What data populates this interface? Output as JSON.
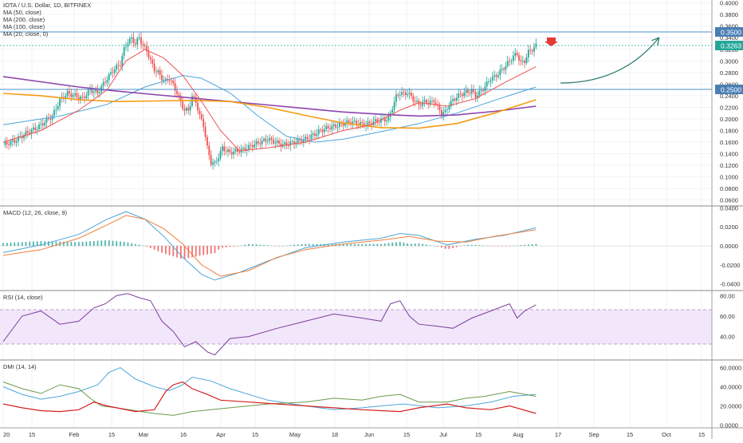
{
  "header": {
    "symbol_line": "IOTA / U.S. Dollar, 1D, BITFINEX",
    "ma_lines": [
      "MA (50, close)",
      "MA (200, close)",
      "MA (100, close)",
      "MA (20, close, 0)"
    ]
  },
  "panes": {
    "macd_label": "MACD (12, 26, close, 9)",
    "rsi_label": "RSI (14, close)",
    "dmi_label": "DMI (14, 14)"
  },
  "price_axis": {
    "ticks": [
      "0.4000",
      "0.3800",
      "0.3600",
      "0.3400",
      "0.3200",
      "0.3000",
      "0.2800",
      "0.2600",
      "0.2400",
      "0.2200",
      "0.2000",
      "0.1800",
      "0.1600",
      "0.1400",
      "0.1200",
      "0.1000",
      "0.0800",
      "0.0600"
    ],
    "tick_values": [
      0.4,
      0.38,
      0.36,
      0.34,
      0.32,
      0.3,
      0.28,
      0.26,
      0.24,
      0.22,
      0.2,
      0.18,
      0.16,
      0.14,
      0.12,
      0.1,
      0.08,
      0.06
    ],
    "resistance_label": "0.3500",
    "support_label": "0.2500",
    "last_price_label": "0.3263"
  },
  "macd_axis": {
    "ticks": [
      "0.0400",
      "0.0200",
      "0.0000",
      "-0.0200",
      "-0.0400"
    ],
    "values": [
      0.04,
      0.02,
      0,
      -0.02,
      -0.04
    ]
  },
  "rsi_axis": {
    "ticks": [
      "80.00",
      "60.00",
      "40.00"
    ],
    "values": [
      80,
      60,
      40
    ],
    "band": [
      30,
      70
    ]
  },
  "dmi_axis": {
    "ticks": [
      "60.0000",
      "40.0000",
      "20.0000",
      "0.0000"
    ],
    "values": [
      60,
      40,
      20,
      0
    ]
  },
  "time_axis": {
    "labels": [
      "20",
      "15",
      "Feb",
      "15",
      "Mar",
      "16",
      "Apr",
      "15",
      "May",
      "18",
      "Jun",
      "15",
      "Jul",
      "15",
      "Aug",
      "17",
      "Sep",
      "15",
      "Oct",
      "15"
    ]
  },
  "colors": {
    "up": "#26a69a",
    "down": "#ef5350",
    "ma50": "#4da6d9",
    "ma200": "#8e44ad",
    "ma100": "#f39c12",
    "ma20": "#ef5350",
    "macd": "#4da6d9",
    "signal": "#f0803c",
    "rsi": "#7b3f9a",
    "rsi_band": "#f2e6fb",
    "hline": "#4a90c8",
    "arrow": "#2e7d6e",
    "dmi_plus": "#6a9a4a",
    "dmi_minus": "#d62020",
    "adx": "#4da6d9"
  },
  "chart_data": {
    "type": "candlestick",
    "symbol": "IOTA / U.S. Dollar",
    "interval": "1D",
    "exchange": "BITFINEX",
    "ylim": [
      0.05,
      0.405
    ],
    "horizontal_levels": [
      0.35,
      0.25
    ],
    "last_price": 0.3263,
    "price_path": [
      [
        0,
        0.155
      ],
      [
        6,
        0.162
      ],
      [
        12,
        0.175
      ],
      [
        18,
        0.185
      ],
      [
        22,
        0.195
      ],
      [
        26,
        0.205
      ],
      [
        30,
        0.232
      ],
      [
        34,
        0.244
      ],
      [
        38,
        0.24
      ],
      [
        42,
        0.235
      ],
      [
        46,
        0.25
      ],
      [
        50,
        0.245
      ],
      [
        54,
        0.265
      ],
      [
        58,
        0.283
      ],
      [
        62,
        0.295
      ],
      [
        64,
        0.32
      ],
      [
        66,
        0.333
      ],
      [
        68,
        0.338
      ],
      [
        70,
        0.33
      ],
      [
        72,
        0.34
      ],
      [
        74,
        0.326
      ],
      [
        76,
        0.318
      ],
      [
        78,
        0.3
      ],
      [
        80,
        0.285
      ],
      [
        82,
        0.28
      ],
      [
        84,
        0.27
      ],
      [
        86,
        0.265
      ],
      [
        88,
        0.27
      ],
      [
        90,
        0.258
      ],
      [
        92,
        0.245
      ],
      [
        94,
        0.228
      ],
      [
        96,
        0.215
      ],
      [
        98,
        0.215
      ],
      [
        100,
        0.238
      ],
      [
        102,
        0.23
      ],
      [
        104,
        0.205
      ],
      [
        106,
        0.19
      ],
      [
        108,
        0.15
      ],
      [
        110,
        0.125
      ],
      [
        112,
        0.123
      ],
      [
        114,
        0.135
      ],
      [
        116,
        0.15
      ],
      [
        118,
        0.145
      ],
      [
        120,
        0.142
      ],
      [
        124,
        0.145
      ],
      [
        128,
        0.148
      ],
      [
        132,
        0.155
      ],
      [
        136,
        0.16
      ],
      [
        140,
        0.165
      ],
      [
        144,
        0.16
      ],
      [
        148,
        0.155
      ],
      [
        152,
        0.158
      ],
      [
        156,
        0.162
      ],
      [
        160,
        0.165
      ],
      [
        164,
        0.172
      ],
      [
        168,
        0.18
      ],
      [
        172,
        0.185
      ],
      [
        176,
        0.188
      ],
      [
        180,
        0.192
      ],
      [
        184,
        0.195
      ],
      [
        188,
        0.192
      ],
      [
        192,
        0.19
      ],
      [
        196,
        0.195
      ],
      [
        200,
        0.198
      ],
      [
        204,
        0.2
      ],
      [
        206,
        0.22
      ],
      [
        208,
        0.238
      ],
      [
        210,
        0.245
      ],
      [
        212,
        0.243
      ],
      [
        214,
        0.245
      ],
      [
        216,
        0.238
      ],
      [
        218,
        0.23
      ],
      [
        220,
        0.225
      ],
      [
        222,
        0.228
      ],
      [
        224,
        0.23
      ],
      [
        226,
        0.228
      ],
      [
        228,
        0.232
      ],
      [
        230,
        0.22
      ],
      [
        232,
        0.21
      ],
      [
        234,
        0.212
      ],
      [
        236,
        0.225
      ],
      [
        238,
        0.232
      ],
      [
        240,
        0.238
      ],
      [
        244,
        0.245
      ],
      [
        248,
        0.248
      ],
      [
        250,
        0.24
      ],
      [
        252,
        0.245
      ],
      [
        254,
        0.252
      ],
      [
        256,
        0.26
      ],
      [
        258,
        0.27
      ],
      [
        260,
        0.272
      ],
      [
        262,
        0.278
      ],
      [
        264,
        0.285
      ],
      [
        266,
        0.292
      ],
      [
        268,
        0.3
      ],
      [
        270,
        0.308
      ],
      [
        272,
        0.312
      ],
      [
        274,
        0.296
      ],
      [
        276,
        0.3
      ],
      [
        278,
        0.315
      ],
      [
        280,
        0.32
      ],
      [
        282,
        0.326
      ]
    ],
    "moving_averages": [
      {
        "name": "MA (50, close)",
        "points": [
          [
            0,
            0.19
          ],
          [
            30,
            0.205
          ],
          [
            55,
            0.225
          ],
          [
            75,
            0.255
          ],
          [
            95,
            0.275
          ],
          [
            105,
            0.27
          ],
          [
            120,
            0.245
          ],
          [
            135,
            0.205
          ],
          [
            150,
            0.17
          ],
          [
            165,
            0.16
          ],
          [
            180,
            0.165
          ],
          [
            200,
            0.178
          ],
          [
            220,
            0.192
          ],
          [
            240,
            0.21
          ],
          [
            260,
            0.232
          ],
          [
            282,
            0.255
          ]
        ]
      },
      {
        "name": "MA (200, close)",
        "points": [
          [
            0,
            0.273
          ],
          [
            20,
            0.264
          ],
          [
            40,
            0.255
          ],
          [
            60,
            0.248
          ],
          [
            80,
            0.242
          ],
          [
            100,
            0.236
          ],
          [
            120,
            0.23
          ],
          [
            140,
            0.224
          ],
          [
            160,
            0.218
          ],
          [
            180,
            0.212
          ],
          [
            200,
            0.208
          ],
          [
            220,
            0.205
          ],
          [
            240,
            0.207
          ],
          [
            260,
            0.213
          ],
          [
            282,
            0.222
          ]
        ]
      },
      {
        "name": "MA (100, close)",
        "points": [
          [
            0,
            0.244
          ],
          [
            20,
            0.24
          ],
          [
            40,
            0.233
          ],
          [
            60,
            0.23
          ],
          [
            80,
            0.231
          ],
          [
            100,
            0.232
          ],
          [
            120,
            0.23
          ],
          [
            140,
            0.22
          ],
          [
            160,
            0.206
          ],
          [
            180,
            0.193
          ],
          [
            200,
            0.185
          ],
          [
            220,
            0.184
          ],
          [
            240,
            0.192
          ],
          [
            260,
            0.21
          ],
          [
            282,
            0.233
          ]
        ]
      },
      {
        "name": "MA (20, close, 0)",
        "points": [
          [
            0,
            0.16
          ],
          [
            20,
            0.18
          ],
          [
            40,
            0.215
          ],
          [
            55,
            0.25
          ],
          [
            65,
            0.3
          ],
          [
            75,
            0.32
          ],
          [
            85,
            0.305
          ],
          [
            95,
            0.275
          ],
          [
            105,
            0.23
          ],
          [
            115,
            0.18
          ],
          [
            125,
            0.145
          ],
          [
            140,
            0.15
          ],
          [
            160,
            0.16
          ],
          [
            180,
            0.18
          ],
          [
            195,
            0.19
          ],
          [
            210,
            0.215
          ],
          [
            220,
            0.228
          ],
          [
            235,
            0.222
          ],
          [
            250,
            0.235
          ],
          [
            265,
            0.262
          ],
          [
            282,
            0.29
          ]
        ]
      }
    ],
    "macd": {
      "ylim": [
        -0.047,
        0.042
      ],
      "macd_line": [
        [
          0,
          -0.007
        ],
        [
          20,
          0.001
        ],
        [
          40,
          0.012
        ],
        [
          55,
          0.028
        ],
        [
          65,
          0.036
        ],
        [
          75,
          0.028
        ],
        [
          85,
          0.01
        ],
        [
          95,
          -0.012
        ],
        [
          105,
          -0.03
        ],
        [
          112,
          -0.036
        ],
        [
          125,
          -0.028
        ],
        [
          140,
          -0.016
        ],
        [
          160,
          -0.002
        ],
        [
          180,
          0.004
        ],
        [
          200,
          0.008
        ],
        [
          210,
          0.013
        ],
        [
          220,
          0.011
        ],
        [
          235,
          0.001
        ],
        [
          250,
          0.007
        ],
        [
          265,
          0.011
        ],
        [
          282,
          0.019
        ]
      ],
      "signal_line": [
        [
          0,
          -0.01
        ],
        [
          20,
          -0.004
        ],
        [
          40,
          0.008
        ],
        [
          55,
          0.022
        ],
        [
          65,
          0.032
        ],
        [
          75,
          0.028
        ],
        [
          85,
          0.018
        ],
        [
          95,
          0.002
        ],
        [
          105,
          -0.02
        ],
        [
          115,
          -0.032
        ],
        [
          130,
          -0.026
        ],
        [
          145,
          -0.012
        ],
        [
          160,
          -0.004
        ],
        [
          180,
          0.002
        ],
        [
          200,
          0.006
        ],
        [
          215,
          0.01
        ],
        [
          230,
          0.005
        ],
        [
          245,
          0.004
        ],
        [
          260,
          0.01
        ],
        [
          282,
          0.017
        ]
      ]
    },
    "rsi": {
      "ylim": [
        17,
        85
      ],
      "band": [
        30,
        70
      ],
      "points": [
        [
          0,
          35
        ],
        [
          10,
          60
        ],
        [
          20,
          65
        ],
        [
          30,
          52
        ],
        [
          40,
          55
        ],
        [
          48,
          68
        ],
        [
          54,
          72
        ],
        [
          60,
          80
        ],
        [
          66,
          82
        ],
        [
          72,
          78
        ],
        [
          78,
          75
        ],
        [
          84,
          55
        ],
        [
          90,
          45
        ],
        [
          96,
          30
        ],
        [
          102,
          35
        ],
        [
          108,
          25
        ],
        [
          112,
          22
        ],
        [
          120,
          38
        ],
        [
          130,
          40
        ],
        [
          145,
          48
        ],
        [
          160,
          55
        ],
        [
          175,
          62
        ],
        [
          190,
          58
        ],
        [
          200,
          55
        ],
        [
          205,
          72
        ],
        [
          210,
          75
        ],
        [
          215,
          60
        ],
        [
          220,
          52
        ],
        [
          230,
          50
        ],
        [
          238,
          48
        ],
        [
          248,
          58
        ],
        [
          258,
          65
        ],
        [
          268,
          72
        ],
        [
          272,
          58
        ],
        [
          276,
          65
        ],
        [
          282,
          71
        ]
      ]
    },
    "dmi": {
      "ylim": [
        -3,
        68
      ],
      "plus_di": [
        [
          0,
          45
        ],
        [
          10,
          38
        ],
        [
          20,
          33
        ],
        [
          30,
          42
        ],
        [
          40,
          38
        ],
        [
          46,
          28
        ],
        [
          52,
          20
        ],
        [
          60,
          18
        ],
        [
          70,
          15
        ],
        [
          80,
          12
        ],
        [
          90,
          10
        ],
        [
          100,
          14
        ],
        [
          110,
          16
        ],
        [
          120,
          18
        ],
        [
          140,
          22
        ],
        [
          160,
          24
        ],
        [
          175,
          28
        ],
        [
          190,
          26
        ],
        [
          200,
          30
        ],
        [
          210,
          32
        ],
        [
          220,
          24
        ],
        [
          235,
          24
        ],
        [
          245,
          28
        ],
        [
          255,
          30
        ],
        [
          268,
          35
        ],
        [
          282,
          30
        ]
      ],
      "minus_di": [
        [
          0,
          22
        ],
        [
          10,
          18
        ],
        [
          20,
          15
        ],
        [
          30,
          14
        ],
        [
          40,
          16
        ],
        [
          48,
          24
        ],
        [
          55,
          20
        ],
        [
          60,
          18
        ],
        [
          70,
          14
        ],
        [
          80,
          16
        ],
        [
          86,
          35
        ],
        [
          90,
          42
        ],
        [
          95,
          45
        ],
        [
          100,
          38
        ],
        [
          108,
          32
        ],
        [
          115,
          26
        ],
        [
          130,
          24
        ],
        [
          145,
          22
        ],
        [
          160,
          20
        ],
        [
          175,
          18
        ],
        [
          190,
          16
        ],
        [
          200,
          15
        ],
        [
          210,
          14
        ],
        [
          220,
          18
        ],
        [
          235,
          22
        ],
        [
          245,
          18
        ],
        [
          258,
          16
        ],
        [
          268,
          20
        ],
        [
          282,
          12
        ]
      ],
      "adx": [
        [
          0,
          40
        ],
        [
          10,
          32
        ],
        [
          20,
          27
        ],
        [
          30,
          30
        ],
        [
          40,
          35
        ],
        [
          50,
          42
        ],
        [
          56,
          55
        ],
        [
          62,
          60
        ],
        [
          70,
          48
        ],
        [
          80,
          40
        ],
        [
          88,
          36
        ],
        [
          95,
          42
        ],
        [
          100,
          50
        ],
        [
          110,
          46
        ],
        [
          120,
          38
        ],
        [
          140,
          26
        ],
        [
          160,
          20
        ],
        [
          175,
          16
        ],
        [
          190,
          18
        ],
        [
          200,
          20
        ],
        [
          212,
          22
        ],
        [
          230,
          18
        ],
        [
          245,
          20
        ],
        [
          258,
          24
        ],
        [
          270,
          30
        ],
        [
          282,
          32
        ]
      ]
    }
  }
}
